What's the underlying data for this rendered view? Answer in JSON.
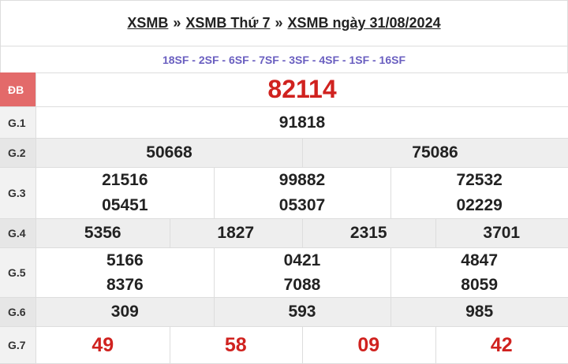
{
  "header": {
    "breadcrumb": [
      "XSMB",
      "XSMB Thứ 7",
      "XSMB ngày 31/08/2024"
    ],
    "separator": "»"
  },
  "codes": "18SF - 2SF - 6SF - 7SF - 3SF - 4SF - 1SF - 16SF",
  "rows": [
    {
      "label": "ĐB",
      "values": [
        "82114"
      ]
    },
    {
      "label": "G.1",
      "values": [
        "91818"
      ]
    },
    {
      "label": "G.2",
      "values": [
        "50668",
        "75086"
      ]
    },
    {
      "label": "G.3",
      "values": [
        "21516",
        "99882",
        "72532",
        "05451",
        "05307",
        "02229"
      ]
    },
    {
      "label": "G.4",
      "values": [
        "5356",
        "1827",
        "2315",
        "3701"
      ]
    },
    {
      "label": "G.5",
      "values": [
        "5166",
        "0421",
        "4847",
        "8376",
        "7088",
        "8059"
      ]
    },
    {
      "label": "G.6",
      "values": [
        "309",
        "593",
        "985"
      ]
    },
    {
      "label": "G.7",
      "values": [
        "49",
        "58",
        "09",
        "42"
      ]
    }
  ]
}
